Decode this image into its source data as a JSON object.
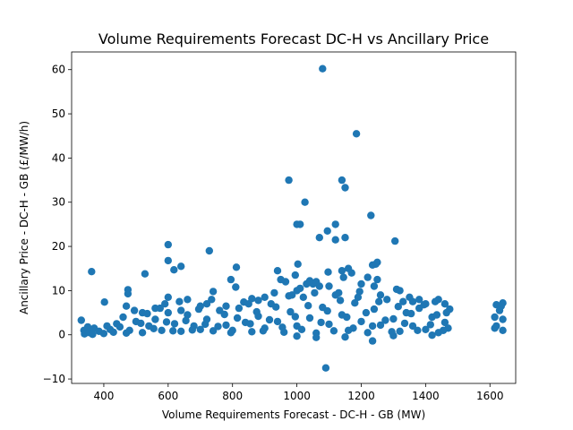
{
  "chart_data": {
    "type": "scatter",
    "title": "Volume Requirements Forecast DC-H vs Ancillary Price",
    "xlabel": "Volume Requirements Forecast - DC-H - GB (MW)",
    "ylabel": "Ancillary Price - DC-H - GB (£/MW/h)",
    "xlim": [
      300,
      1680
    ],
    "ylim": [
      -11,
      64
    ],
    "xticks": [
      400,
      600,
      800,
      1000,
      1200,
      1400,
      1600
    ],
    "yticks": [
      -10,
      0,
      10,
      20,
      30,
      40,
      50,
      60
    ],
    "xtick_labels": [
      "400",
      "600",
      "800",
      "1000",
      "1200",
      "1400",
      "1600"
    ],
    "ytick_labels": [
      "−10",
      "0",
      "10",
      "20",
      "30",
      "40",
      "50",
      "60"
    ],
    "grid": false,
    "series": [
      {
        "color": "#1f77b4",
        "points": [
          [
            1080,
            60.2
          ],
          [
            1185,
            45.5
          ],
          [
            975,
            35.0
          ],
          [
            1140,
            35.0
          ],
          [
            1150,
            33.3
          ],
          [
            1025,
            30.0
          ],
          [
            1230,
            27.0
          ],
          [
            1010,
            25.0
          ],
          [
            1000,
            25.0
          ],
          [
            1120,
            25.0
          ],
          [
            1095,
            23.5
          ],
          [
            1070,
            22.0
          ],
          [
            1150,
            22.0
          ],
          [
            1120,
            21.5
          ],
          [
            1305,
            21.2
          ],
          [
            600,
            20.4
          ],
          [
            728,
            19.0
          ],
          [
            600,
            16.8
          ],
          [
            1250,
            16.4
          ],
          [
            1245,
            16.0
          ],
          [
            1003,
            16.0
          ],
          [
            1235,
            15.8
          ],
          [
            640,
            15.5
          ],
          [
            812,
            15.3
          ],
          [
            618,
            14.7
          ],
          [
            1160,
            15.0
          ],
          [
            940,
            14.5
          ],
          [
            362,
            14.3
          ],
          [
            1140,
            14.5
          ],
          [
            1097,
            14.2
          ],
          [
            528,
            13.8
          ],
          [
            995,
            13.5
          ],
          [
            1145,
            13.0
          ],
          [
            950,
            12.5
          ],
          [
            1040,
            12.2
          ],
          [
            795,
            12.5
          ],
          [
            965,
            12.0
          ],
          [
            1050,
            11.5
          ],
          [
            1100,
            11.0
          ],
          [
            1200,
            11.5
          ],
          [
            810,
            10.8
          ],
          [
            1240,
            11.0
          ],
          [
            475,
            10.2
          ],
          [
            1310,
            10.3
          ],
          [
            1320,
            10.0
          ],
          [
            1000,
            10.0
          ],
          [
            740,
            9.8
          ],
          [
            475,
            9.3
          ],
          [
            1350,
            8.5
          ],
          [
            600,
            8.5
          ],
          [
            1440,
            8.0
          ],
          [
            1430,
            7.5
          ],
          [
            402,
            7.4
          ],
          [
            1460,
            7.0
          ],
          [
            1620,
            6.8
          ],
          [
            1640,
            7.2
          ],
          [
            1635,
            6.5
          ],
          [
            1475,
            5.8
          ],
          [
            1630,
            5.5
          ],
          [
            1615,
            4.0
          ],
          [
            1640,
            3.5
          ],
          [
            1620,
            2.0
          ],
          [
            1640,
            1.0
          ],
          [
            1615,
            1.5
          ],
          [
            1380,
            8.0
          ],
          [
            1360,
            7.5
          ],
          [
            880,
            7.8
          ],
          [
            900,
            8.5
          ],
          [
            850,
            7.0
          ],
          [
            700,
            6.5
          ],
          [
            560,
            6.0
          ],
          [
            640,
            5.5
          ],
          [
            330,
            3.3
          ],
          [
            338,
            1.0
          ],
          [
            340,
            0.2
          ],
          [
            355,
            0.5
          ],
          [
            370,
            1.5
          ],
          [
            385,
            0.8
          ],
          [
            400,
            0.3
          ],
          [
            420,
            1.2
          ],
          [
            440,
            2.5
          ],
          [
            460,
            4.0
          ],
          [
            480,
            1.0
          ],
          [
            500,
            3.0
          ],
          [
            520,
            0.5
          ],
          [
            540,
            2.0
          ],
          [
            560,
            3.5
          ],
          [
            580,
            1.0
          ],
          [
            600,
            5.0
          ],
          [
            620,
            2.5
          ],
          [
            640,
            0.8
          ],
          [
            660,
            4.5
          ],
          [
            680,
            2.0
          ],
          [
            700,
            1.2
          ],
          [
            720,
            3.5
          ],
          [
            740,
            0.9
          ],
          [
            760,
            5.5
          ],
          [
            780,
            2.2
          ],
          [
            800,
            1.0
          ],
          [
            820,
            6.0
          ],
          [
            840,
            2.8
          ],
          [
            860,
            0.7
          ],
          [
            880,
            4.2
          ],
          [
            900,
            1.5
          ],
          [
            920,
            7.0
          ],
          [
            940,
            3.0
          ],
          [
            960,
            0.6
          ],
          [
            980,
            5.2
          ],
          [
            1000,
            2.0
          ],
          [
            1020,
            8.5
          ],
          [
            1040,
            3.8
          ],
          [
            1060,
            0.4
          ],
          [
            1080,
            6.2
          ],
          [
            1100,
            2.4
          ],
          [
            1120,
            9.0
          ],
          [
            1140,
            4.5
          ],
          [
            1160,
            1.0
          ],
          [
            1180,
            7.2
          ],
          [
            1200,
            3.0
          ],
          [
            1220,
            0.5
          ],
          [
            1240,
            5.8
          ],
          [
            1260,
            2.2
          ],
          [
            1280,
            8.0
          ],
          [
            1300,
            3.6
          ],
          [
            1320,
            0.8
          ],
          [
            1340,
            5.0
          ],
          [
            1360,
            2.0
          ],
          [
            1380,
            6.0
          ],
          [
            1400,
            1.2
          ],
          [
            1420,
            4.0
          ],
          [
            1440,
            0.5
          ],
          [
            1460,
            2.8
          ],
          [
            1470,
            1.5
          ],
          [
            1060,
            -0.6
          ],
          [
            1235,
            -1.4
          ],
          [
            1090,
            -7.5
          ],
          [
            1000,
            -0.3
          ],
          [
            1150,
            -0.5
          ],
          [
            1300,
            -0.2
          ],
          [
            1420,
            -0.1
          ],
          [
            350,
            1.8
          ],
          [
            365,
            0.1
          ],
          [
            410,
            2.0
          ],
          [
            430,
            0.6
          ],
          [
            450,
            1.8
          ],
          [
            470,
            0.4
          ],
          [
            495,
            5.5
          ],
          [
            515,
            2.6
          ],
          [
            535,
            4.8
          ],
          [
            555,
            1.4
          ],
          [
            575,
            6.0
          ],
          [
            595,
            2.9
          ],
          [
            615,
            0.9
          ],
          [
            635,
            7.5
          ],
          [
            655,
            3.2
          ],
          [
            675,
            1.1
          ],
          [
            695,
            5.8
          ],
          [
            715,
            2.4
          ],
          [
            735,
            8.0
          ],
          [
            755,
            1.9
          ],
          [
            775,
            4.6
          ],
          [
            795,
            0.5
          ],
          [
            815,
            3.8
          ],
          [
            835,
            7.4
          ],
          [
            855,
            2.5
          ],
          [
            875,
            5.2
          ],
          [
            895,
            0.9
          ],
          [
            915,
            3.4
          ],
          [
            935,
            6.3
          ],
          [
            955,
            1.7
          ],
          [
            975,
            8.8
          ],
          [
            995,
            4.1
          ],
          [
            1015,
            1.2
          ],
          [
            1035,
            6.6
          ],
          [
            1055,
            9.5
          ],
          [
            1075,
            2.8
          ],
          [
            1095,
            5.4
          ],
          [
            1115,
            0.9
          ],
          [
            1135,
            7.8
          ],
          [
            1155,
            4.0
          ],
          [
            1175,
            1.5
          ],
          [
            1195,
            9.8
          ],
          [
            1215,
            5.0
          ],
          [
            1235,
            2.0
          ],
          [
            1255,
            7.5
          ],
          [
            1275,
            3.3
          ],
          [
            1295,
            0.7
          ],
          [
            1315,
            6.4
          ],
          [
            1335,
            2.6
          ],
          [
            1355,
            4.8
          ],
          [
            1375,
            1.0
          ],
          [
            1395,
            6.8
          ],
          [
            1415,
            2.3
          ],
          [
            1435,
            4.5
          ],
          [
            1455,
            1.0
          ],
          [
            1465,
            5.0
          ],
          [
            470,
            6.5
          ],
          [
            520,
            5.0
          ],
          [
            590,
            7.0
          ],
          [
            660,
            8.0
          ],
          [
            720,
            7.0
          ],
          [
            780,
            6.5
          ],
          [
            860,
            8.2
          ],
          [
            930,
            9.5
          ],
          [
            1010,
            10.5
          ],
          [
            1070,
            11.0
          ],
          [
            1130,
            9.5
          ],
          [
            1190,
            8.5
          ],
          [
            1260,
            9.0
          ],
          [
            1330,
            7.5
          ],
          [
            1400,
            7.0
          ],
          [
            1250,
            12.5
          ],
          [
            1220,
            13.0
          ],
          [
            1170,
            14.0
          ],
          [
            1060,
            12.0
          ],
          [
            1030,
            11.5
          ],
          [
            985,
            9.0
          ]
        ]
      }
    ]
  }
}
